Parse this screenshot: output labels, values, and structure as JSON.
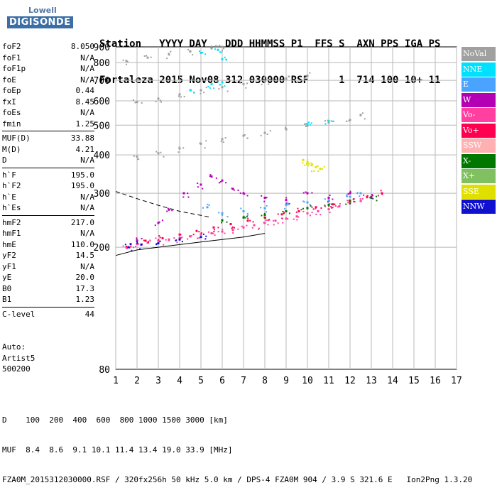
{
  "logo": {
    "line1": "Lowell",
    "line2": "DIGISONDE"
  },
  "header": {
    "labels": [
      "Station",
      "YYYY DAY",
      "DDD HHMMSS",
      "P1",
      "FFS",
      "S",
      "AXN",
      "PPS",
      "IGA",
      "PS"
    ],
    "values": [
      "Fortaleza",
      "2015 Nov08",
      "312 030000",
      "RSF",
      "",
      "1",
      "714",
      "100",
      "10+",
      "11"
    ],
    "line1": "Station   YYYY DAY   DDD HHMMSS P1  FFS S  AXN PPS IGA PS",
    "line2": "Fortaleza 2015 Nov08 312 030000 RSF     1  714 100 10+ 11"
  },
  "scaled_groups": [
    [
      {
        "name": "foF2",
        "value": "8.050"
      },
      {
        "name": "foF1",
        "value": "N/A"
      },
      {
        "name": "foF1p",
        "value": "N/A"
      },
      {
        "name": "foE",
        "value": "N/A"
      },
      {
        "name": "foEp",
        "value": "0.44"
      },
      {
        "name": "fxI",
        "value": "8.45"
      },
      {
        "name": "foEs",
        "value": "N/A"
      },
      {
        "name": "fmin",
        "value": "1.25"
      }
    ],
    [
      {
        "name": "MUF(D)",
        "value": "33.88"
      },
      {
        "name": "M(D)",
        "value": "4.21"
      },
      {
        "name": "D",
        "value": "N/A"
      }
    ],
    [
      {
        "name": "h`F",
        "value": "195.0"
      },
      {
        "name": "h`F2",
        "value": "195.0"
      },
      {
        "name": "h`E",
        "value": "N/A"
      },
      {
        "name": "h`Es",
        "value": "N/A"
      }
    ],
    [
      {
        "name": "hmF2",
        "value": "217.0"
      },
      {
        "name": "hmF1",
        "value": "N/A"
      },
      {
        "name": "hmE",
        "value": "110.0"
      },
      {
        "name": "yF2",
        "value": "14.5"
      },
      {
        "name": "yF1",
        "value": "N/A"
      },
      {
        "name": "yE",
        "value": "20.0"
      },
      {
        "name": "B0",
        "value": "17.3"
      },
      {
        "name": "B1",
        "value": "1.23"
      }
    ],
    [
      {
        "name": "C-level",
        "value": "44"
      }
    ]
  ],
  "autoinfo": {
    "line1": "Auto:",
    "line2": "Artist5",
    "line3": "500200"
  },
  "legend": [
    {
      "label": "NoVal",
      "color": "#a0a0a0"
    },
    {
      "label": "NNE",
      "color": "#00e0ff"
    },
    {
      "label": "E",
      "color": "#4aa3ff"
    },
    {
      "label": "W",
      "color": "#b400b4"
    },
    {
      "label": "Vo-",
      "color": "#ff40a0"
    },
    {
      "label": "Vo+",
      "color": "#ff0050"
    },
    {
      "label": "SSW",
      "color": "#ffb0b0"
    },
    {
      "label": "X-",
      "color": "#007800"
    },
    {
      "label": "X+",
      "color": "#80c060"
    },
    {
      "label": "SSE",
      "color": "#e0e000"
    },
    {
      "label": "NNW",
      "color": "#1010d0"
    }
  ],
  "footer": {
    "line1": "D    100  200  400  600  800 1000 1500 3000 [km]",
    "line2": "MUF  8.4  8.6  9.1 10.1 11.4 13.4 19.0 33.9 [MHz]",
    "line3": "FZA0M_2015312030000.RSF / 320fx256h 50 kHz 5.0 km / DPS-4 FZA0M 904 / 3.9 S 321.6 E   Ion2Png 1.3.20"
  },
  "chart_data": {
    "type": "scatter",
    "title": "",
    "xlabel": "",
    "ylabel": "",
    "xlim": [
      1,
      17
    ],
    "ylim": [
      80,
      900
    ],
    "x_ticks": [
      1,
      2,
      3,
      4,
      5,
      6,
      7,
      8,
      9,
      10,
      11,
      12,
      13,
      14,
      15,
      16,
      17
    ],
    "y_ticks": [
      80,
      200,
      300,
      400,
      500,
      600,
      700,
      800,
      900
    ],
    "y_scale": "log",
    "grid": true,
    "legend_position": "right",
    "series": [
      {
        "name": "Vo-",
        "points": [
          [
            1.5,
            200
          ],
          [
            2,
            205
          ],
          [
            2.5,
            207
          ],
          [
            3,
            210
          ],
          [
            3.5,
            212
          ],
          [
            4,
            214
          ],
          [
            4.5,
            217
          ],
          [
            5,
            220
          ],
          [
            5.5,
            222
          ],
          [
            6,
            225
          ],
          [
            6.5,
            228
          ],
          [
            7,
            232
          ],
          [
            7.5,
            236
          ],
          [
            8,
            240
          ],
          [
            8.5,
            244
          ],
          [
            9,
            248
          ],
          [
            9.5,
            252
          ],
          [
            10,
            258
          ],
          [
            10.5,
            262
          ],
          [
            11,
            266
          ],
          [
            11.5,
            272
          ],
          [
            12,
            278
          ],
          [
            12.5,
            283
          ]
        ]
      },
      {
        "name": "Vo+",
        "points": [
          [
            1.7,
            205
          ],
          [
            2.4,
            210
          ],
          [
            3.2,
            214
          ],
          [
            4,
            220
          ],
          [
            4.8,
            226
          ],
          [
            5.6,
            232
          ],
          [
            6.4,
            238
          ],
          [
            7.2,
            244
          ],
          [
            8,
            250
          ],
          [
            8.8,
            256
          ],
          [
            9.6,
            262
          ],
          [
            10.4,
            270
          ],
          [
            11.2,
            276
          ],
          [
            12,
            284
          ],
          [
            12.8,
            292
          ],
          [
            13.5,
            300
          ]
        ]
      },
      {
        "name": "W",
        "points": [
          [
            2,
            210
          ],
          [
            3,
            240
          ],
          [
            3.5,
            265
          ],
          [
            4.2,
            300
          ],
          [
            5,
            320
          ],
          [
            5.5,
            340
          ],
          [
            6,
            330
          ],
          [
            6.5,
            310
          ],
          [
            7,
            300
          ],
          [
            8,
            290
          ],
          [
            9,
            285
          ],
          [
            10,
            300
          ],
          [
            11,
            290
          ],
          [
            12,
            300
          ],
          [
            13,
            292
          ]
        ]
      },
      {
        "name": "E",
        "points": [
          [
            5.3,
            270
          ],
          [
            6,
            258
          ],
          [
            7,
            262
          ],
          [
            8,
            268
          ],
          [
            9,
            275
          ],
          [
            10,
            280
          ],
          [
            11,
            285
          ],
          [
            12,
            292
          ],
          [
            12.5,
            300
          ]
        ]
      },
      {
        "name": "X-",
        "points": [
          [
            6,
            245
          ],
          [
            7,
            250
          ],
          [
            8,
            255
          ],
          [
            9,
            262
          ],
          [
            10,
            268
          ],
          [
            11,
            275
          ],
          [
            12,
            282
          ],
          [
            13,
            290
          ]
        ]
      },
      {
        "name": "SSE",
        "points": [
          [
            9.8,
            385
          ],
          [
            10,
            378
          ],
          [
            10.2,
            370
          ],
          [
            10.4,
            365
          ],
          [
            10.6,
            360
          ]
        ]
      },
      {
        "name": "NNW",
        "points": [
          [
            1.6,
            200
          ],
          [
            2.2,
            204
          ],
          [
            3,
            206
          ],
          [
            4,
            212
          ],
          [
            5,
            216
          ]
        ]
      },
      {
        "name": "NoVal",
        "points": [
          [
            2,
            395
          ],
          [
            3,
            405
          ],
          [
            4,
            420
          ],
          [
            5,
            435
          ],
          [
            6,
            450
          ],
          [
            7,
            462
          ],
          [
            8,
            472
          ],
          [
            9,
            485
          ],
          [
            10,
            498
          ],
          [
            11,
            510
          ],
          [
            12,
            520
          ],
          [
            12.5,
            540
          ],
          [
            2,
            595
          ],
          [
            3,
            610
          ],
          [
            4,
            630
          ],
          [
            5,
            650
          ],
          [
            6,
            665
          ],
          [
            7,
            680
          ],
          [
            8,
            695
          ],
          [
            9,
            710
          ],
          [
            10,
            725
          ],
          [
            1.5,
            810
          ],
          [
            2.5,
            830
          ],
          [
            3.5,
            850
          ],
          [
            4.5,
            870
          ],
          [
            5.5,
            890
          ],
          [
            6,
            900
          ]
        ]
      },
      {
        "name": "NNE",
        "points": [
          [
            4.5,
            650
          ],
          [
            5.5,
            680
          ],
          [
            6,
            690
          ],
          [
            5,
            860
          ],
          [
            5.8,
            880
          ],
          [
            6,
            820
          ],
          [
            10,
            505
          ],
          [
            11,
            515
          ]
        ]
      }
    ],
    "curves": [
      {
        "name": "profile-solid",
        "points": [
          [
            1,
            188
          ],
          [
            2,
            196
          ],
          [
            3,
            200
          ],
          [
            4,
            204
          ],
          [
            5,
            208
          ],
          [
            6,
            212
          ],
          [
            7,
            216
          ],
          [
            8,
            222
          ]
        ]
      },
      {
        "name": "profile-dashed",
        "points": [
          [
            1,
            304
          ],
          [
            2,
            288
          ],
          [
            3,
            274
          ],
          [
            4,
            262
          ],
          [
            5,
            254
          ],
          [
            5.5,
            250
          ]
        ]
      }
    ]
  }
}
